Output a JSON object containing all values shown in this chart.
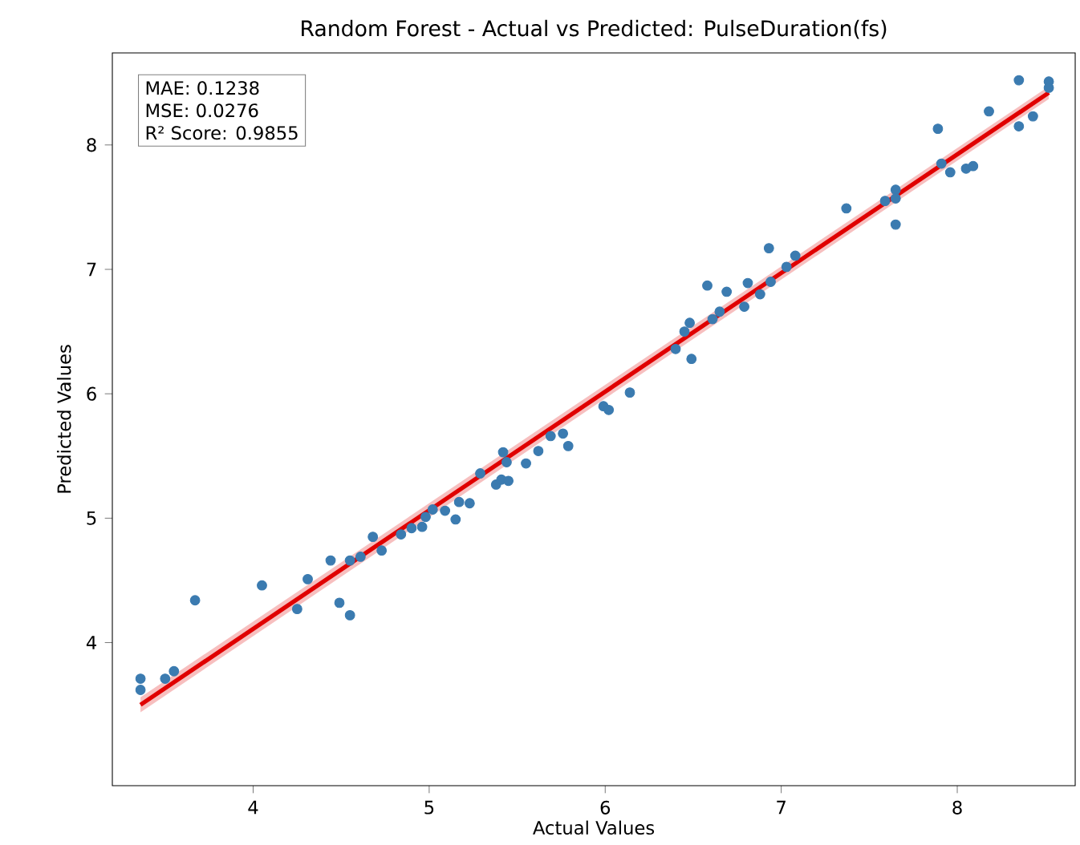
{
  "chart_data": {
    "type": "scatter",
    "title": "Random Forest - Actual vs Predicted: PulseDuration(fs)",
    "xlabel": "Actual Values",
    "ylabel": "Predicted Values",
    "annotations": [
      "MAE: 0.1238",
      "MSE: 0.0276",
      "R² Score: 0.9855"
    ],
    "xlim": [
      3.2,
      8.67
    ],
    "ylim": [
      2.85,
      8.74
    ],
    "xticks": [
      4,
      5,
      6,
      7,
      8
    ],
    "yticks": [
      4,
      5,
      6,
      7,
      8
    ],
    "grid": false,
    "marker": "circle",
    "series": [
      {
        "color": "#3b7bb0",
        "x": [
          3.36,
          3.36,
          3.5,
          3.55,
          3.67,
          4.05,
          4.25,
          4.31,
          4.44,
          4.49,
          4.55,
          4.55,
          4.61,
          4.68,
          4.73,
          4.84,
          4.9,
          4.96,
          4.98,
          5.02,
          5.09,
          5.15,
          5.17,
          5.23,
          5.29,
          5.38,
          5.41,
          5.45,
          5.42,
          5.44,
          5.55,
          5.62,
          5.69,
          5.76,
          5.79,
          5.99,
          6.02,
          6.14,
          6.4,
          6.45,
          6.48,
          6.49,
          6.58,
          6.61,
          6.65,
          6.69,
          6.79,
          6.81,
          6.88,
          6.93,
          6.94,
          7.03,
          7.08,
          7.37,
          7.59,
          7.65,
          7.65,
          7.65,
          7.89,
          7.91,
          7.96,
          8.05,
          8.09,
          8.18,
          8.35,
          8.35,
          8.43,
          8.52,
          8.52
        ],
        "values": [
          3.71,
          3.62,
          3.71,
          3.77,
          4.34,
          4.46,
          4.27,
          4.51,
          4.66,
          4.32,
          4.22,
          4.66,
          4.69,
          4.85,
          4.74,
          4.87,
          4.92,
          4.93,
          5.01,
          5.07,
          5.06,
          4.99,
          5.13,
          5.12,
          5.36,
          5.27,
          5.31,
          5.3,
          5.53,
          5.45,
          5.44,
          5.54,
          5.66,
          5.68,
          5.58,
          5.9,
          5.87,
          6.01,
          6.36,
          6.5,
          6.57,
          6.28,
          6.87,
          6.6,
          6.66,
          6.82,
          6.7,
          6.89,
          6.8,
          7.17,
          6.9,
          7.02,
          7.11,
          7.49,
          7.55,
          7.64,
          7.57,
          7.36,
          8.13,
          7.85,
          7.78,
          7.81,
          7.83,
          8.27,
          8.15,
          8.52,
          8.23,
          8.51,
          8.46
        ]
      },
      {
        "type": "line",
        "color": "#e00000",
        "line_style": "solid",
        "marker": "none",
        "x": [
          3.36,
          8.52
        ],
        "values": [
          3.5,
          8.42
        ],
        "lower": [
          3.44,
          8.37
        ],
        "upper": [
          3.56,
          8.47
        ]
      }
    ]
  }
}
